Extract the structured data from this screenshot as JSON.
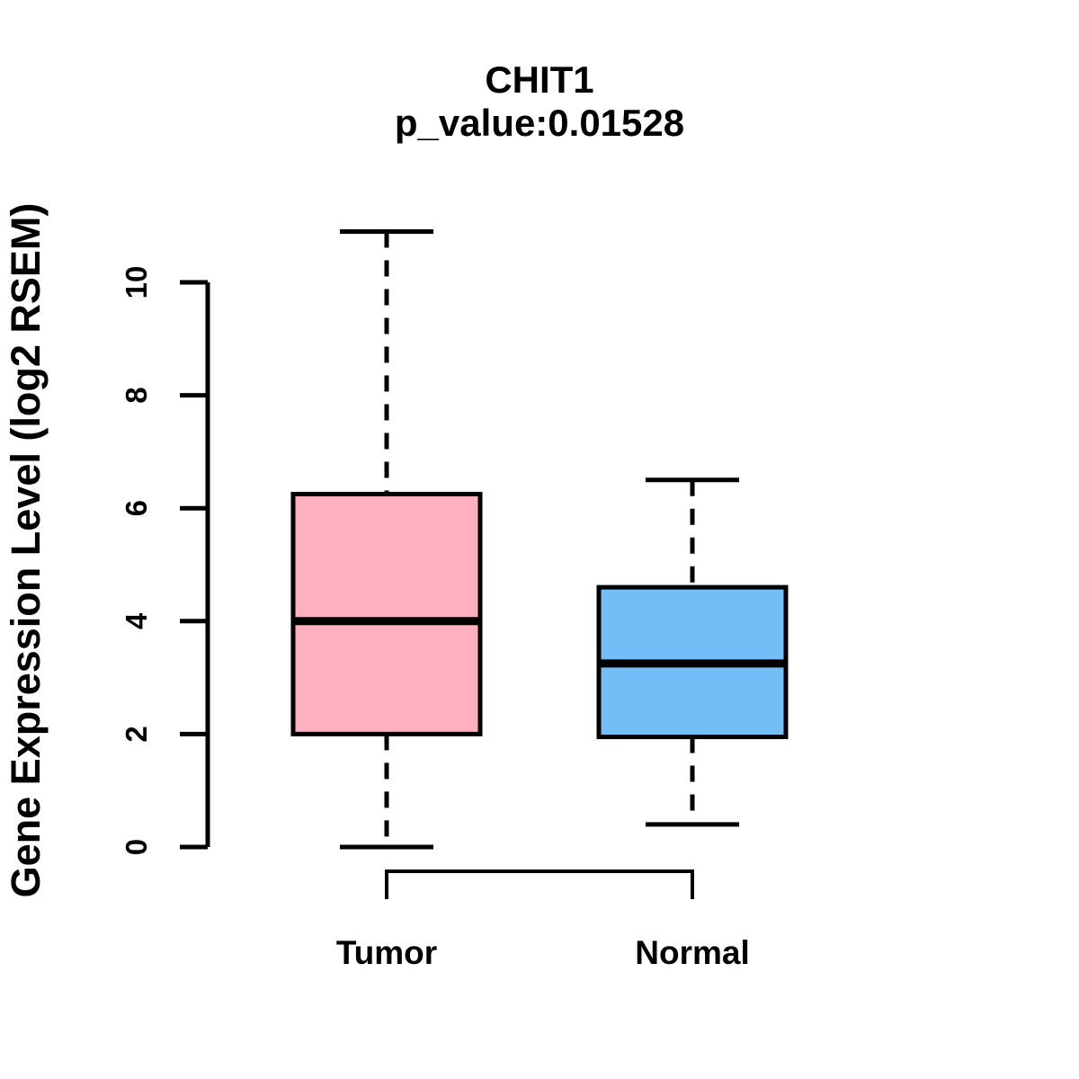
{
  "page": {
    "background_color": "#ffffff",
    "text_color": "#000000"
  },
  "chart_data": {
    "type": "boxplot",
    "title": "CHIT1",
    "subtitle": "p_value:0.01528",
    "ylabel": "Gene Expression Level (log2 RSEM)",
    "xlabel": "",
    "categories": [
      "Tumor",
      "Normal"
    ],
    "yticks": [
      0,
      2,
      4,
      6,
      8,
      10
    ],
    "ylim": [
      0,
      10.9
    ],
    "grid": false,
    "legend": "none",
    "line_color": "#000000",
    "series": [
      {
        "name": "Tumor",
        "fill_color": "#ffb1c1",
        "stroke_color": "#000000",
        "stats": {
          "whisker_low": 0.0,
          "q1": 2.0,
          "median": 4.0,
          "q3": 6.25,
          "whisker_high": 10.9
        }
      },
      {
        "name": "Normal",
        "fill_color": "#74bef7",
        "stroke_color": "#000000",
        "stats": {
          "whisker_low": 0.4,
          "q1": 1.95,
          "median": 3.25,
          "q3": 4.6,
          "whisker_high": 6.5
        }
      }
    ]
  }
}
